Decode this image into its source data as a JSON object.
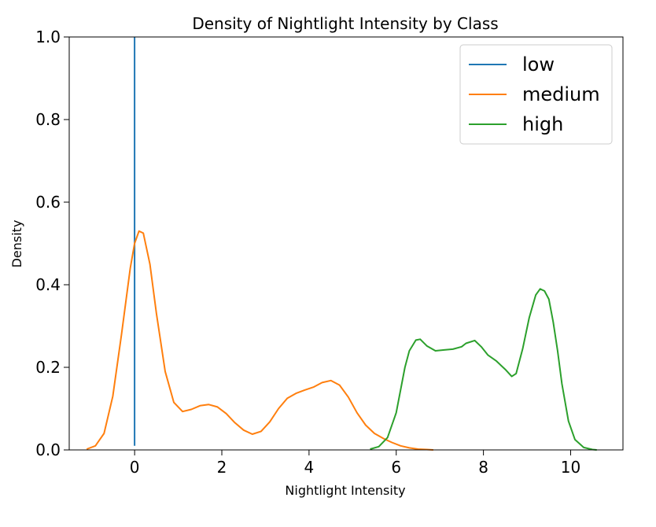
{
  "chart_data": {
    "type": "line",
    "title": "Density of Nightlight Intensity by Class",
    "xlabel": "Nightlight Intensity",
    "ylabel": "Density",
    "xlim": [
      -1.5,
      11.2
    ],
    "ylim": [
      0.0,
      1.0
    ],
    "xticks": [
      0,
      2,
      4,
      6,
      8,
      10
    ],
    "yticks": [
      0.0,
      0.2,
      0.4,
      0.6,
      0.8,
      1.0
    ],
    "xtick_labels": [
      "0",
      "2",
      "4",
      "6",
      "8",
      "10"
    ],
    "ytick_labels": [
      "0.0",
      "0.2",
      "0.4",
      "0.6",
      "0.8",
      "1.0"
    ],
    "grid": false,
    "legend_position": "top-right",
    "series": [
      {
        "name": "low",
        "color": "#1f77b4",
        "style": "vertical-line",
        "x": [
          0.0,
          0.0
        ],
        "y": [
          0.01,
          1.0
        ]
      },
      {
        "name": "medium",
        "color": "#ff7f0e",
        "style": "line",
        "x": [
          -1.1,
          -0.9,
          -0.7,
          -0.5,
          -0.3,
          -0.1,
          0.0,
          0.1,
          0.2,
          0.35,
          0.5,
          0.7,
          0.9,
          1.1,
          1.3,
          1.5,
          1.7,
          1.9,
          2.1,
          2.3,
          2.5,
          2.7,
          2.9,
          3.1,
          3.3,
          3.5,
          3.7,
          3.9,
          4.1,
          4.3,
          4.5,
          4.7,
          4.9,
          5.1,
          5.3,
          5.5,
          5.7,
          5.9,
          6.1,
          6.3,
          6.5,
          6.7,
          6.85
        ],
        "y": [
          0.002,
          0.01,
          0.04,
          0.13,
          0.28,
          0.44,
          0.5,
          0.53,
          0.525,
          0.45,
          0.33,
          0.19,
          0.115,
          0.093,
          0.098,
          0.107,
          0.11,
          0.104,
          0.088,
          0.066,
          0.048,
          0.038,
          0.045,
          0.068,
          0.1,
          0.125,
          0.137,
          0.145,
          0.152,
          0.163,
          0.168,
          0.157,
          0.128,
          0.09,
          0.06,
          0.04,
          0.028,
          0.018,
          0.01,
          0.005,
          0.002,
          0.001,
          0.0
        ]
      },
      {
        "name": "high",
        "color": "#2ca02c",
        "style": "line",
        "x": [
          5.4,
          5.6,
          5.8,
          6.0,
          6.2,
          6.3,
          6.45,
          6.55,
          6.7,
          6.9,
          7.1,
          7.3,
          7.5,
          7.6,
          7.8,
          7.95,
          8.1,
          8.3,
          8.5,
          8.65,
          8.75,
          8.9,
          9.05,
          9.2,
          9.3,
          9.4,
          9.5,
          9.6,
          9.7,
          9.8,
          9.95,
          10.1,
          10.3,
          10.5,
          10.6
        ],
        "y": [
          0.002,
          0.008,
          0.03,
          0.09,
          0.2,
          0.24,
          0.266,
          0.268,
          0.252,
          0.24,
          0.242,
          0.244,
          0.25,
          0.258,
          0.265,
          0.25,
          0.23,
          0.215,
          0.195,
          0.178,
          0.185,
          0.245,
          0.32,
          0.375,
          0.39,
          0.385,
          0.365,
          0.31,
          0.24,
          0.16,
          0.07,
          0.025,
          0.006,
          0.001,
          0.0
        ]
      }
    ]
  }
}
